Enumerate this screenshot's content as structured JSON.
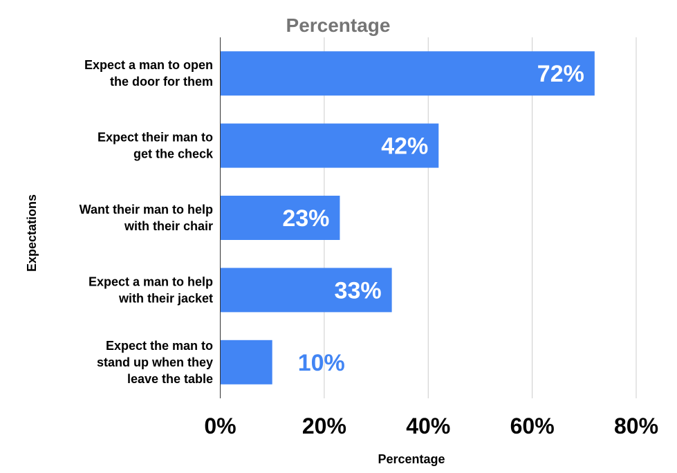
{
  "chart_data": {
    "type": "bar",
    "orientation": "horizontal",
    "title": "Percentage",
    "xlabel": "Percentage",
    "ylabel": "Expectations",
    "categories": [
      [
        "Expect a man to open",
        "the door for them"
      ],
      [
        "Expect their man to",
        "get the check"
      ],
      [
        "Want their man to help",
        "with their chair"
      ],
      [
        "Expect a man to help",
        "with their jacket"
      ],
      [
        "Expect the man to",
        "stand up when they",
        "leave the table"
      ]
    ],
    "values": [
      72,
      42,
      23,
      33,
      10
    ],
    "data_labels": [
      "72%",
      "42%",
      "23%",
      "33%",
      "10%"
    ],
    "xlim": [
      0,
      80
    ],
    "xticks": [
      0,
      20,
      40,
      60,
      80
    ],
    "xtick_labels": [
      "0%",
      "20%",
      "40%",
      "60%",
      "80%"
    ],
    "grid": "vertical",
    "legend": "none",
    "colors": {
      "bar": "#4285f4",
      "label_inside": "#ffffff",
      "label_outside": "#4285f4",
      "title": "#757575",
      "text": "#000000",
      "grid": "#cccccc",
      "axis": "#333333"
    }
  }
}
